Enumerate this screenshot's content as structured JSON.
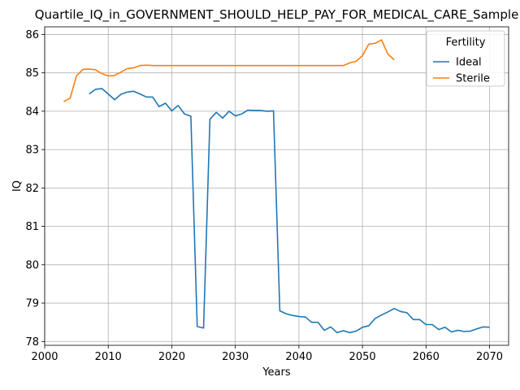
{
  "chart_data": {
    "type": "line",
    "title": "Quartile_IQ_in_GOVERNMENT_SHOULD_HELP_PAY_FOR_MEDICAL_CARE_Sample",
    "xlabel": "Years",
    "ylabel": "IQ",
    "xlim": [
      2000,
      2073
    ],
    "ylim": [
      77.9,
      86.2
    ],
    "xticks": [
      2000,
      2010,
      2020,
      2030,
      2040,
      2050,
      2060,
      2070
    ],
    "yticks": [
      78,
      79,
      80,
      81,
      82,
      83,
      84,
      85,
      86
    ],
    "grid": true,
    "legend": {
      "title": "Fertility",
      "placement": "top-right"
    },
    "series": [
      {
        "name": "Ideal",
        "color": "#1f77b4",
        "x": [
          2007,
          2008,
          2009,
          2010,
          2011,
          2012,
          2013,
          2014,
          2015,
          2016,
          2017,
          2018,
          2019,
          2020,
          2021,
          2022,
          2023,
          2024,
          2025,
          2026,
          2027,
          2028,
          2029,
          2030,
          2031,
          2032,
          2033,
          2034,
          2035,
          2036,
          2037,
          2038,
          2039,
          2040,
          2041,
          2042,
          2043,
          2044,
          2045,
          2046,
          2047,
          2048,
          2049,
          2050,
          2051,
          2052,
          2053,
          2054,
          2055,
          2056,
          2057,
          2058,
          2059,
          2060,
          2061,
          2062,
          2063,
          2064,
          2065,
          2066,
          2067,
          2068,
          2069,
          2070
        ],
        "y": [
          84.45,
          84.57,
          84.59,
          84.45,
          84.3,
          84.44,
          84.5,
          84.52,
          84.45,
          84.37,
          84.37,
          84.12,
          84.21,
          84.01,
          84.15,
          83.93,
          83.87,
          78.39,
          78.35,
          83.79,
          83.97,
          83.82,
          84.0,
          83.88,
          83.93,
          84.03,
          84.02,
          84.02,
          84.0,
          84.01,
          78.8,
          78.72,
          78.68,
          78.65,
          78.64,
          78.5,
          78.5,
          78.29,
          78.38,
          78.23,
          78.28,
          78.23,
          78.27,
          78.37,
          78.41,
          78.6,
          78.69,
          78.77,
          78.86,
          78.78,
          78.75,
          78.57,
          78.57,
          78.44,
          78.44,
          78.31,
          78.37,
          78.25,
          78.29,
          78.26,
          78.27,
          78.33,
          78.38,
          78.37
        ]
      },
      {
        "name": "Sterile",
        "color": "#ff7f0e",
        "x": [
          2003,
          2004,
          2005,
          2006,
          2007,
          2008,
          2009,
          2010,
          2011,
          2012,
          2013,
          2014,
          2015,
          2016,
          2017,
          2018,
          2019,
          2020,
          2021,
          2022,
          2023,
          2024,
          2025,
          2026,
          2027,
          2028,
          2029,
          2030,
          2031,
          2032,
          2033,
          2034,
          2035,
          2036,
          2037,
          2038,
          2039,
          2040,
          2041,
          2042,
          2043,
          2044,
          2045,
          2046,
          2047,
          2048,
          2049,
          2050,
          2051,
          2052,
          2053,
          2054,
          2055
        ],
        "y": [
          84.25,
          84.34,
          84.92,
          85.09,
          85.1,
          85.08,
          84.98,
          84.92,
          84.93,
          85.02,
          85.11,
          85.13,
          85.19,
          85.2,
          85.19,
          85.19,
          85.19,
          85.19,
          85.19,
          85.19,
          85.19,
          85.19,
          85.19,
          85.19,
          85.19,
          85.19,
          85.19,
          85.19,
          85.19,
          85.19,
          85.19,
          85.19,
          85.19,
          85.19,
          85.19,
          85.19,
          85.19,
          85.19,
          85.19,
          85.19,
          85.19,
          85.19,
          85.19,
          85.19,
          85.19,
          85.26,
          85.3,
          85.45,
          85.75,
          85.77,
          85.86,
          85.49,
          85.34
        ]
      }
    ]
  }
}
